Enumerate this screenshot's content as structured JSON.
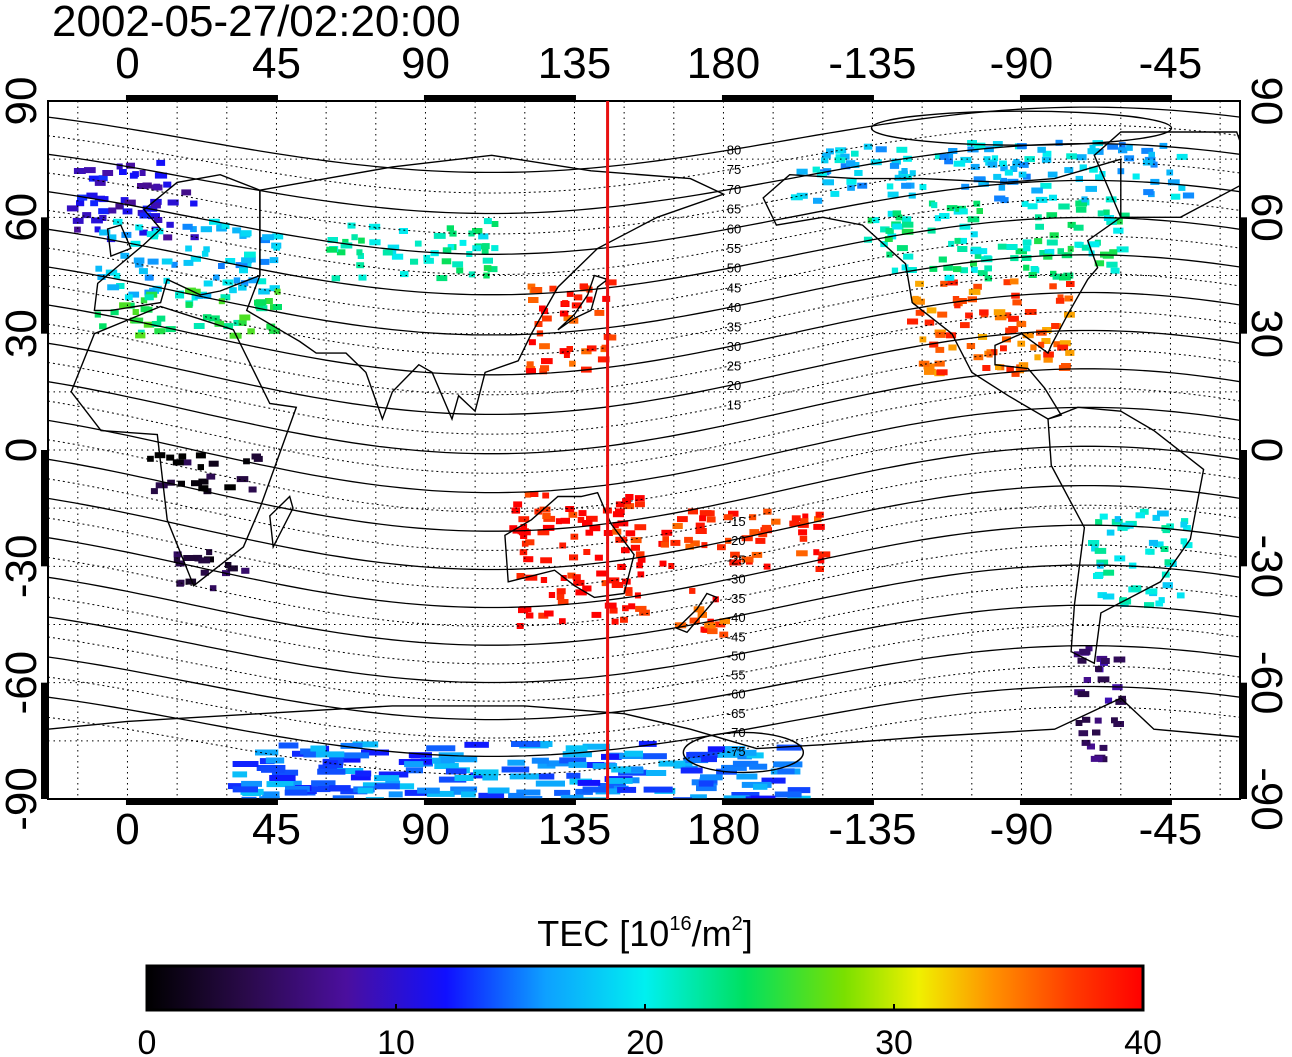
{
  "title": "2002-05-27/02:20:00",
  "map": {
    "lon_ticks": [
      "0",
      "45",
      "90",
      "135",
      "180",
      "-135",
      "-90",
      "-45"
    ],
    "lon_tick_values": [
      0,
      45,
      90,
      135,
      180,
      225,
      270,
      315
    ],
    "lat_ticks": [
      "90",
      "60",
      "30",
      "0",
      "-30",
      "-60",
      "-90"
    ],
    "lat_tick_values": [
      90,
      60,
      30,
      0,
      -30,
      -60,
      -90
    ],
    "lon_range": [
      -24,
      336
    ],
    "lat_range": [
      -90,
      90
    ],
    "grid": "dotted every 15 degrees",
    "marker_line_lon": 145,
    "marker_line_color": "#e81010",
    "contour_labels": [
      "80",
      "75",
      "70",
      "65",
      "60",
      "55",
      "50",
      "45",
      "40",
      "35",
      "30",
      "25",
      "20",
      "15",
      "-15",
      "-20",
      "-25",
      "-30",
      "-35",
      "-40",
      "-45",
      "-50",
      "-55",
      "-60",
      "-65",
      "-70",
      "-75"
    ]
  },
  "colorbar": {
    "label_main": "TEC  [10",
    "label_sup1": "16",
    "label_mid": "/m",
    "label_sup2": "2",
    "label_end": "]",
    "ticks": [
      "0",
      "10",
      "20",
      "30",
      "40"
    ],
    "tick_values": [
      0,
      10,
      20,
      30,
      40
    ],
    "range": [
      0,
      40
    ]
  },
  "tec_regions": [
    {
      "name": "north-atlantic-europe",
      "lon": [
        -20,
        20
      ],
      "lat": [
        55,
        75
      ],
      "tec": 10
    },
    {
      "name": "europe-central",
      "lon": [
        -10,
        45
      ],
      "lat": [
        40,
        60
      ],
      "tec": 18
    },
    {
      "name": "europe-south",
      "lon": [
        -10,
        45
      ],
      "lat": [
        30,
        42
      ],
      "tec": 24
    },
    {
      "name": "east-asia",
      "lon": [
        120,
        145
      ],
      "lat": [
        20,
        45
      ],
      "tec": 38
    },
    {
      "name": "north-america-south",
      "lon": [
        235,
        285
      ],
      "lat": [
        20,
        45
      ],
      "tec": 36
    },
    {
      "name": "north-america-north",
      "lon": [
        220,
        300
      ],
      "lat": [
        45,
        65
      ],
      "tec": 22
    },
    {
      "name": "arctic-north-america",
      "lon": [
        200,
        320
      ],
      "lat": [
        65,
        80
      ],
      "tec": 18
    },
    {
      "name": "australia",
      "lon": [
        115,
        155
      ],
      "lat": [
        -45,
        -10
      ],
      "tec": 39
    },
    {
      "name": "new-zealand",
      "lon": [
        165,
        180
      ],
      "lat": [
        -48,
        -35
      ],
      "tec": 37
    },
    {
      "name": "pacific-islands",
      "lon": [
        160,
        210
      ],
      "lat": [
        -30,
        -15
      ],
      "tec": 38
    },
    {
      "name": "south-africa",
      "lon": [
        10,
        35
      ],
      "lat": [
        -35,
        -25
      ],
      "tec": 3
    },
    {
      "name": "central-africa",
      "lon": [
        5,
        40
      ],
      "lat": [
        -10,
        0
      ],
      "tec": 2
    },
    {
      "name": "south-america-south",
      "lon": [
        285,
        300
      ],
      "lat": [
        -80,
        -50
      ],
      "tec": 6
    },
    {
      "name": "south-america-mid",
      "lon": [
        290,
        320
      ],
      "lat": [
        -40,
        -15
      ],
      "tec": 20
    },
    {
      "name": "antarctica",
      "lon": [
        30,
        200
      ],
      "lat": [
        -90,
        -75
      ],
      "tec": 15
    },
    {
      "name": "central-asia",
      "lon": [
        60,
        110
      ],
      "lat": [
        45,
        60
      ],
      "tec": 22
    }
  ]
}
